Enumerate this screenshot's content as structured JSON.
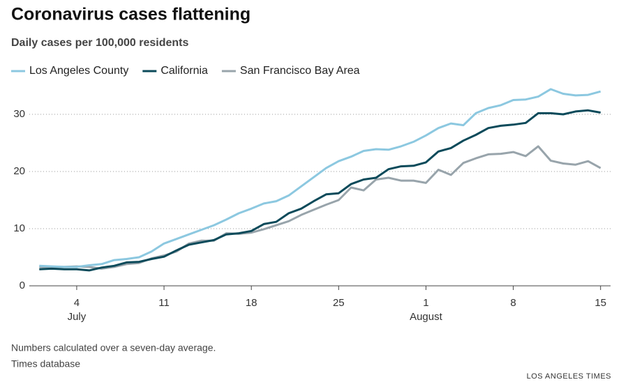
{
  "chart_data": {
    "type": "line",
    "title": "Coronavirus cases flattening",
    "subtitle": "Daily cases per 100,000 residents",
    "note": "Numbers calculated over a seven-day average.",
    "source": "Times database",
    "credit": "LOS ANGELES TIMES",
    "x": [
      1,
      2,
      3,
      4,
      5,
      6,
      7,
      8,
      9,
      10,
      11,
      12,
      13,
      14,
      15,
      16,
      17,
      18,
      19,
      20,
      21,
      22,
      23,
      24,
      25,
      26,
      27,
      28,
      29,
      30,
      31,
      32,
      33,
      34,
      35,
      36,
      37,
      38,
      39,
      40,
      41,
      42,
      43,
      44,
      45,
      46
    ],
    "xlim": [
      0.2,
      46.8
    ],
    "xticks": [
      4,
      11,
      18,
      25,
      {
        "value": 32,
        "label": "1"
      },
      {
        "value": 39,
        "label": "8"
      },
      {
        "value": 46,
        "label": "15"
      }
    ],
    "month_labels": [
      {
        "value": 4,
        "label": "July"
      },
      {
        "value": 32,
        "label": "August"
      }
    ],
    "ylim": [
      0,
      35
    ],
    "yticks": [
      0,
      10,
      20,
      30
    ],
    "grid": true,
    "legend": "top",
    "series": [
      {
        "name": "Los Angeles County",
        "color": "#8cc8e0",
        "values": [
          3.5,
          3.4,
          3.3,
          3.3,
          3.6,
          3.8,
          4.5,
          4.7,
          5.0,
          6.0,
          7.4,
          8.2,
          9.0,
          9.8,
          10.6,
          11.6,
          12.7,
          13.5,
          14.4,
          14.8,
          15.8,
          17.4,
          19.0,
          20.6,
          21.8,
          22.6,
          23.6,
          23.9,
          23.8,
          24.4,
          25.2,
          26.3,
          27.6,
          28.4,
          28.1,
          30.2,
          31.1,
          31.6,
          32.5,
          32.6,
          33.1,
          34.4,
          33.6,
          33.3,
          33.4,
          34.0
        ]
      },
      {
        "name": "California",
        "color": "#0b4a5a",
        "values": [
          2.9,
          3.0,
          2.9,
          2.9,
          2.7,
          3.2,
          3.5,
          4.1,
          4.2,
          4.7,
          5.1,
          6.2,
          7.2,
          7.6,
          8.0,
          9.0,
          9.2,
          9.6,
          10.8,
          11.2,
          12.7,
          13.5,
          14.8,
          16.0,
          16.2,
          17.8,
          18.6,
          18.9,
          20.4,
          20.9,
          21.0,
          21.6,
          23.5,
          24.1,
          25.4,
          26.4,
          27.6,
          28.0,
          28.2,
          28.5,
          30.2,
          30.2,
          30.0,
          30.5,
          30.7,
          30.3
        ]
      },
      {
        "name": "San Francisco Bay Area",
        "color": "#98a4ab",
        "values": [
          3.3,
          3.3,
          3.3,
          3.4,
          3.3,
          3.0,
          3.3,
          3.8,
          4.0,
          4.8,
          5.3,
          6.0,
          7.4,
          7.9,
          7.9,
          9.2,
          9.1,
          9.3,
          9.9,
          10.6,
          11.3,
          12.4,
          13.3,
          14.2,
          15.0,
          17.2,
          16.7,
          18.6,
          18.9,
          18.4,
          18.4,
          18.0,
          20.3,
          19.4,
          21.5,
          22.3,
          23.0,
          23.1,
          23.4,
          22.7,
          24.4,
          21.9,
          21.4,
          21.2,
          21.8,
          20.6
        ]
      }
    ]
  }
}
